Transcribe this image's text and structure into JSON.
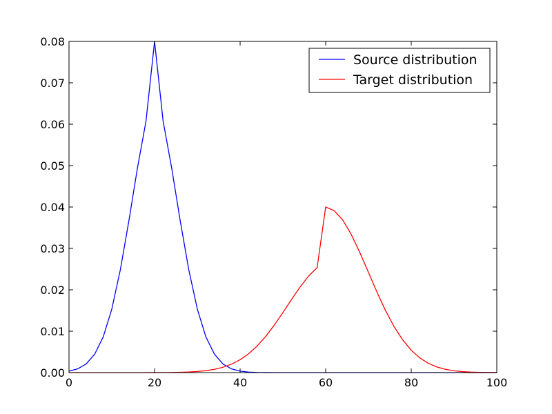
{
  "chart_data": {
    "type": "line",
    "title": "",
    "xlabel": "",
    "ylabel": "",
    "xlim": [
      0,
      100
    ],
    "ylim": [
      0,
      0.08
    ],
    "xticks": [
      "0",
      "20",
      "40",
      "60",
      "80",
      "100"
    ],
    "yticks": [
      "0.00",
      "0.01",
      "0.02",
      "0.03",
      "0.04",
      "0.05",
      "0.06",
      "0.07",
      "0.08"
    ],
    "grid": false,
    "legend_position": "top-right",
    "x": [
      0,
      2,
      4,
      6,
      8,
      10,
      12,
      14,
      16,
      18,
      20,
      22,
      24,
      26,
      28,
      30,
      32,
      34,
      36,
      38,
      40,
      42,
      44,
      46,
      48,
      50,
      52,
      54,
      56,
      58,
      60,
      62,
      64,
      66,
      68,
      70,
      72,
      74,
      76,
      78,
      80,
      82,
      84,
      86,
      88,
      90,
      92,
      94,
      96,
      98,
      100
    ],
    "series": [
      {
        "name": "Source distribution",
        "color": "#0000ff",
        "values": [
          0.00035,
          0.00089,
          0.00208,
          0.00444,
          0.00864,
          0.01533,
          0.02483,
          0.03667,
          0.04942,
          0.06075,
          0.08,
          0.06075,
          0.04942,
          0.03667,
          0.02483,
          0.01533,
          0.00864,
          0.00444,
          0.00208,
          0.00089,
          0.00035,
          0.00012,
          4e-05,
          1e-05,
          0,
          0,
          0,
          0,
          0,
          0,
          0,
          0,
          0,
          0,
          0,
          0,
          0,
          0,
          0,
          0,
          0,
          0,
          0,
          0,
          0,
          0,
          0,
          0,
          0,
          0,
          0
        ]
      },
      {
        "name": "Target distribution",
        "color": "#ff0000",
        "values": [
          0,
          0,
          0,
          0,
          0,
          0,
          0,
          0,
          0,
          0,
          1e-05,
          2e-05,
          4e-05,
          8e-05,
          0.00014,
          0.00027,
          0.00047,
          0.00079,
          0.0013,
          0.00205,
          0.00312,
          0.00456,
          0.00644,
          0.00876,
          0.01149,
          0.0145,
          0.01763,
          0.02065,
          0.02331,
          0.02535,
          0.04,
          0.0391,
          0.03684,
          0.03332,
          0.02897,
          0.0242,
          0.01942,
          0.01497,
          0.01109,
          0.0079,
          0.0054,
          0.00355,
          0.00224,
          0.00136,
          0.00079,
          0.00044,
          0.00024,
          0.00012,
          6e-05,
          3e-05,
          1e-05
        ]
      }
    ]
  }
}
